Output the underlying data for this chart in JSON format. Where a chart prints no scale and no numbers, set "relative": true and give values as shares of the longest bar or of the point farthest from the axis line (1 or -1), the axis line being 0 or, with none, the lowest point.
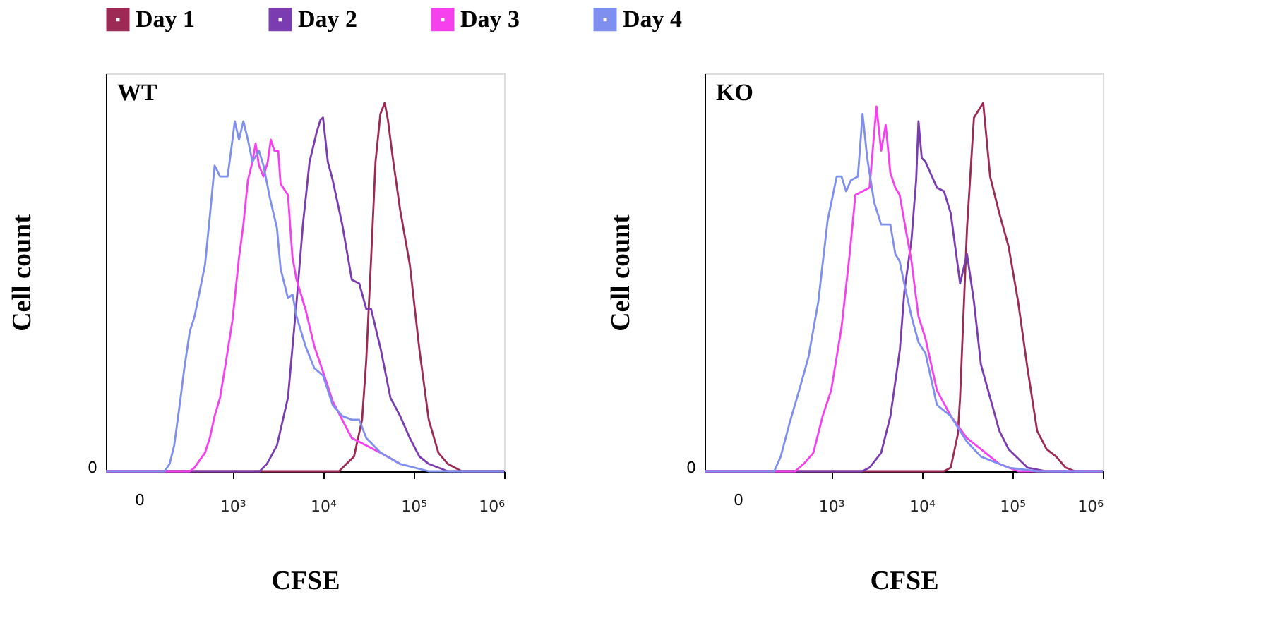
{
  "chart_data": [
    {
      "type": "line",
      "title": "WT",
      "xlabel": "CFSE",
      "ylabel": "Cell count",
      "relative": true,
      "legend": "top",
      "grid": false,
      "log": "x",
      "annotations": [
        "0",
        "0"
      ],
      "xlim": [
        40,
        1000000
      ],
      "xticks": [
        {
          "value": 1000,
          "label": "10³"
        },
        {
          "value": 10000,
          "label": "10⁴"
        },
        {
          "value": 100000,
          "label": "10⁵"
        },
        {
          "value": 1000000,
          "label": "10⁶"
        }
      ],
      "series": [
        {
          "name": "Day 1",
          "color": "#9c2a55",
          "x": [
            40,
            15000,
            22000,
            27000,
            30000,
            34000,
            38000,
            43000,
            48000,
            52000,
            59000,
            71000,
            91000,
            116000,
            147000,
            188000,
            239000,
            340000,
            1000000
          ],
          "values": [
            0,
            0,
            0.04,
            0.14,
            0.3,
            0.58,
            0.84,
            0.97,
            1.0,
            0.955,
            0.85,
            0.71,
            0.56,
            0.33,
            0.14,
            0.05,
            0.02,
            0,
            0
          ]
        },
        {
          "name": "Day 2",
          "color": "#7a3cb0",
          "x": [
            40,
            2000,
            2400,
            3100,
            4100,
            5100,
            6000,
            7100,
            8500,
            9400,
            10000,
            11300,
            12800,
            16300,
            20800,
            25100,
            30100,
            34000,
            43500,
            55500,
            71000,
            91000,
            116000,
            147000,
            239000,
            1000000
          ],
          "values": [
            0,
            0,
            0.02,
            0.07,
            0.2,
            0.46,
            0.67,
            0.84,
            0.92,
            0.955,
            0.96,
            0.84,
            0.79,
            0.67,
            0.52,
            0.51,
            0.44,
            0.44,
            0.33,
            0.2,
            0.15,
            0.09,
            0.04,
            0.02,
            0,
            0
          ]
        },
        {
          "name": "Day 3",
          "color": "#f640ee",
          "x": [
            40,
            338,
            381,
            434,
            497,
            561,
            635,
            729,
            826,
            1000,
            1180,
            1320,
            1480,
            1660,
            1800,
            1960,
            2200,
            2450,
            2650,
            2900,
            3200,
            3400,
            4100,
            4600,
            5100,
            6400,
            8000,
            10000,
            12800,
            16300,
            20800,
            30100,
            43500,
            71000
          ],
          "values": [
            0,
            0,
            0.01,
            0.03,
            0.05,
            0.09,
            0.15,
            0.2,
            0.28,
            0.41,
            0.58,
            0.67,
            0.79,
            0.84,
            0.89,
            0.83,
            0.8,
            0.84,
            0.9,
            0.87,
            0.87,
            0.78,
            0.75,
            0.58,
            0.52,
            0.44,
            0.34,
            0.27,
            0.19,
            0.14,
            0.09,
            0.07,
            0.05,
            0.02
          ]
        },
        {
          "name": "Day 4",
          "color": "#7f8ff0",
          "x": [
            40,
            178,
            202,
            227,
            261,
            294,
            338,
            381,
            497,
            561,
            635,
            729,
            883,
            1000,
            1060,
            1180,
            1320,
            1480,
            1660,
            1960,
            2200,
            2600,
            3100,
            3400,
            4100,
            4600,
            5100,
            6400,
            8000,
            10000,
            12800,
            16300,
            20800,
            25100,
            30100,
            43500,
            71000,
            147000,
            305000,
            1000000
          ],
          "values": [
            0,
            0,
            0.02,
            0.07,
            0.18,
            0.28,
            0.38,
            0.42,
            0.56,
            0.69,
            0.83,
            0.8,
            0.8,
            0.9,
            0.95,
            0.9,
            0.95,
            0.9,
            0.84,
            0.87,
            0.83,
            0.74,
            0.66,
            0.55,
            0.47,
            0.48,
            0.42,
            0.34,
            0.28,
            0.26,
            0.18,
            0.15,
            0.14,
            0.14,
            0.09,
            0.05,
            0.02,
            0,
            0,
            0
          ]
        }
      ]
    },
    {
      "type": "line",
      "title": "KO",
      "xlabel": "CFSE",
      "ylabel": "Cell count",
      "relative": true,
      "grid": false,
      "log": "x",
      "annotations": [
        "0",
        "0"
      ],
      "xlim": [
        40,
        1000000
      ],
      "xticks": [
        {
          "value": 1000,
          "label": "10³"
        },
        {
          "value": 10000,
          "label": "10⁴"
        },
        {
          "value": 100000,
          "label": "10⁵"
        },
        {
          "value": 1000000,
          "label": "10⁶"
        }
      ],
      "series": [
        {
          "color": "#9c2a55",
          "x": [
            40,
            17600,
            20900,
            25000,
            26500,
            31600,
            37700,
            45000,
            47700,
            56900,
            71900,
            91000,
            116000,
            147000,
            188000,
            239000,
            305000,
            388000,
            495000,
            1000000
          ],
          "values": [
            0,
            0,
            0.01,
            0.1,
            0.2,
            0.66,
            0.96,
            0.99,
            1.0,
            0.8,
            0.7,
            0.61,
            0.46,
            0.28,
            0.11,
            0.06,
            0.04,
            0.01,
            0,
            0
          ]
        },
        {
          "color": "#7a3cb0",
          "x": [
            40,
            2200,
            2650,
            3560,
            4510,
            5730,
            6440,
            7710,
            8670,
            9200,
            10000,
            11000,
            14700,
            17600,
            20900,
            26500,
            31600,
            37700,
            45000,
            56900,
            71900,
            91000,
            147000,
            239000,
            1000000
          ],
          "values": [
            0,
            0,
            0.01,
            0.05,
            0.15,
            0.33,
            0.49,
            0.63,
            0.79,
            0.95,
            0.85,
            0.84,
            0.77,
            0.76,
            0.7,
            0.51,
            0.59,
            0.46,
            0.29,
            0.2,
            0.11,
            0.06,
            0.01,
            0,
            0
          ]
        },
        {
          "color": "#f640ee",
          "x": [
            40,
            312,
            399,
            497,
            635,
            805,
            1000,
            1300,
            1600,
            1850,
            2650,
            3160,
            3560,
            4000,
            4500,
            5100,
            5700,
            6400,
            7700,
            9200,
            11000,
            14700,
            20900,
            31600,
            45000,
            72000,
            116000,
            239000,
            1000000
          ],
          "values": [
            0,
            0,
            0,
            0.02,
            0.05,
            0.15,
            0.22,
            0.39,
            0.59,
            0.75,
            0.77,
            0.99,
            0.87,
            0.94,
            0.81,
            0.77,
            0.75,
            0.68,
            0.57,
            0.42,
            0.36,
            0.22,
            0.15,
            0.09,
            0.06,
            0.02,
            0,
            0,
            0
          ]
        },
        {
          "color": "#7f8ff0",
          "x": [
            40,
            235,
            277,
            346,
            443,
            561,
            720,
            912,
            1150,
            1300,
            1460,
            1650,
            1970,
            2220,
            2500,
            2980,
            3560,
            4500,
            5100,
            5700,
            6400,
            7700,
            9200,
            11000,
            14700,
            20900,
            31600,
            45000,
            91000,
            188000,
            1000000
          ],
          "values": [
            0,
            0,
            0.04,
            0.13,
            0.22,
            0.31,
            0.46,
            0.68,
            0.8,
            0.8,
            0.76,
            0.79,
            0.8,
            0.97,
            0.85,
            0.73,
            0.67,
            0.67,
            0.59,
            0.57,
            0.51,
            0.42,
            0.35,
            0.32,
            0.18,
            0.15,
            0.08,
            0.04,
            0.01,
            0,
            0
          ]
        }
      ]
    }
  ]
}
